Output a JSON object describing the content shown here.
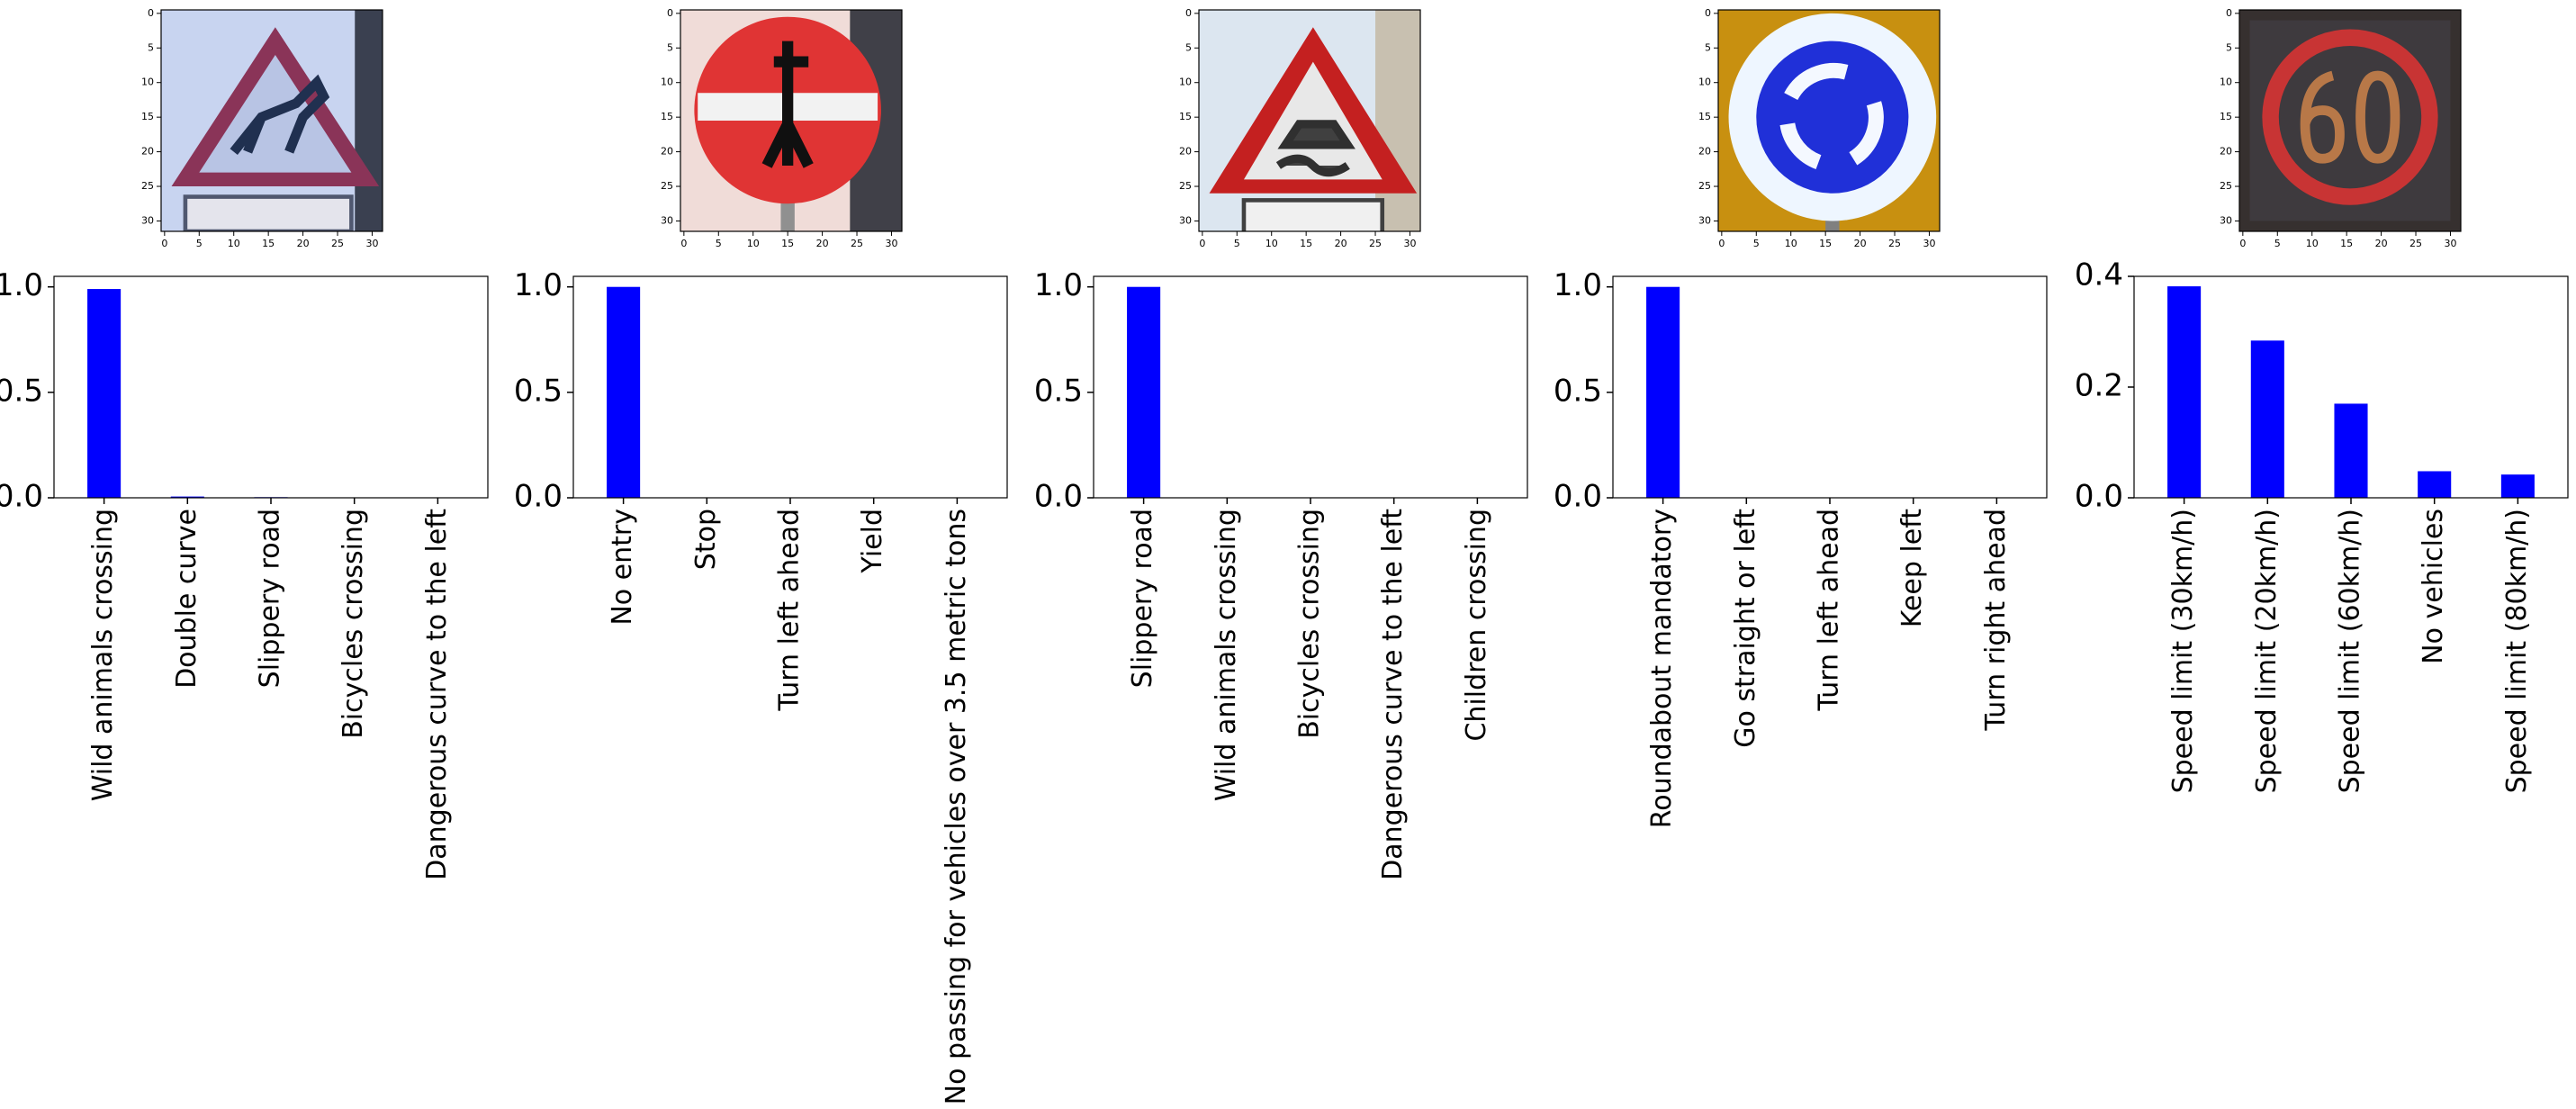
{
  "chart_data": [
    {
      "type": "image",
      "xlim": [
        -0.5,
        31.5
      ],
      "ylim": [
        31.5,
        -0.5
      ],
      "xticks": [
        0,
        5,
        10,
        15,
        20,
        25,
        30
      ],
      "yticks": [
        0,
        5,
        10,
        15,
        20,
        25,
        30
      ]
    },
    {
      "type": "image",
      "xlim": [
        -0.5,
        31.5
      ],
      "ylim": [
        31.5,
        -0.5
      ],
      "xticks": [
        0,
        5,
        10,
        15,
        20,
        25,
        30
      ],
      "yticks": [
        0,
        5,
        10,
        15,
        20,
        25,
        30
      ]
    },
    {
      "type": "image",
      "xlim": [
        -0.5,
        31.5
      ],
      "ylim": [
        31.5,
        -0.5
      ],
      "xticks": [
        0,
        5,
        10,
        15,
        20,
        25,
        30
      ],
      "yticks": [
        0,
        5,
        10,
        15,
        20,
        25,
        30
      ]
    },
    {
      "type": "image",
      "xlim": [
        -0.5,
        31.5
      ],
      "ylim": [
        31.5,
        -0.5
      ],
      "xticks": [
        0,
        5,
        10,
        15,
        20,
        25,
        30
      ],
      "yticks": [
        0,
        5,
        10,
        15,
        20,
        25,
        30
      ]
    },
    {
      "type": "image",
      "xlim": [
        -0.5,
        31.5
      ],
      "ylim": [
        31.5,
        -0.5
      ],
      "xticks": [
        0,
        5,
        10,
        15,
        20,
        25,
        30
      ],
      "yticks": [
        0,
        5,
        10,
        15,
        20,
        25,
        30
      ]
    },
    {
      "type": "bar",
      "color": "#0000ff",
      "categories": [
        "Wild animals crossing",
        "Double curve",
        "Slippery road",
        "Bicycles crossing",
        "Dangerous curve to the left"
      ],
      "values": [
        0.99,
        0.006,
        0.003,
        0,
        0
      ],
      "ylim": [
        0,
        1.05
      ],
      "yticks": [
        {
          "value": 0,
          "label": "0.0"
        },
        {
          "value": 0.5,
          "label": "0.5"
        },
        {
          "value": 1,
          "label": "1.0"
        }
      ]
    },
    {
      "type": "bar",
      "color": "#0000ff",
      "categories": [
        "No entry",
        "Stop",
        "Turn left ahead",
        "Yield",
        "No passing for vehicles over 3.5 metric tons"
      ],
      "values": [
        1,
        0,
        0,
        0,
        0
      ],
      "ylim": [
        0,
        1.05
      ],
      "yticks": [
        {
          "value": 0,
          "label": "0.0"
        },
        {
          "value": 0.5,
          "label": "0.5"
        },
        {
          "value": 1,
          "label": "1.0"
        }
      ]
    },
    {
      "type": "bar",
      "color": "#0000ff",
      "categories": [
        "Slippery road",
        "Wild animals crossing",
        "Bicycles crossing",
        "Dangerous curve to the left",
        "Children crossing"
      ],
      "values": [
        1,
        0,
        0,
        0,
        0
      ],
      "ylim": [
        0,
        1.05
      ],
      "yticks": [
        {
          "value": 0,
          "label": "0.0"
        },
        {
          "value": 0.5,
          "label": "0.5"
        },
        {
          "value": 1,
          "label": "1.0"
        }
      ]
    },
    {
      "type": "bar",
      "color": "#0000ff",
      "categories": [
        "Roundabout mandatory",
        "Go straight or left",
        "Turn left ahead",
        "Keep left",
        "Turn right ahead"
      ],
      "values": [
        1,
        0,
        0,
        0,
        0
      ],
      "ylim": [
        0,
        1.05
      ],
      "yticks": [
        {
          "value": 0,
          "label": "0.0"
        },
        {
          "value": 0.5,
          "label": "0.5"
        },
        {
          "value": 1,
          "label": "1.0"
        }
      ]
    },
    {
      "type": "bar",
      "color": "#0000ff",
      "categories": [
        "Speed limit (30km/h)",
        "Speed limit (20km/h)",
        "Speed limit (60km/h)",
        "No vehicles",
        "Speed limit (80km/h)"
      ],
      "values": [
        0.382,
        0.284,
        0.17,
        0.048,
        0.042
      ],
      "ylim": [
        0,
        0.4
      ],
      "yticks": [
        {
          "value": 0,
          "label": "0.0"
        },
        {
          "value": 0.2,
          "label": "0.2"
        },
        {
          "value": 0.4,
          "label": "0.4"
        }
      ]
    }
  ]
}
